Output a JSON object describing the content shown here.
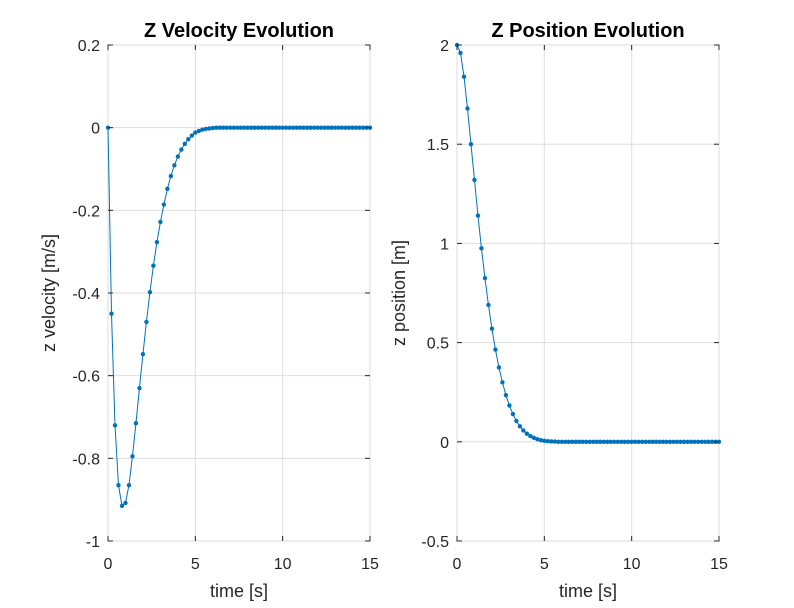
{
  "chart_data": [
    {
      "type": "line",
      "title": "Z Velocity Evolution",
      "xlabel": "time [s]",
      "ylabel": "z velocity [m/s]",
      "xlim": [
        0,
        15
      ],
      "ylim": [
        -1,
        0.2
      ],
      "xticks": [
        0,
        5,
        10,
        15
      ],
      "xtick_labels": [
        "0",
        "5",
        "10",
        "15"
      ],
      "yticks": [
        -1,
        -0.8,
        -0.6,
        -0.4,
        -0.2,
        0,
        0.2
      ],
      "ytick_labels": [
        "-1",
        "-0.8",
        "-0.6",
        "-0.4",
        "-0.2",
        "0",
        "0.2"
      ],
      "grid": true,
      "color": "#0072BD",
      "marker": "dot",
      "series": [
        {
          "x": [
            0,
            0.2,
            0.4,
            0.6,
            0.8,
            1.0,
            1.2,
            1.4,
            1.6,
            1.8,
            2.0,
            2.2,
            2.4,
            2.6,
            2.8,
            3.0,
            3.2,
            3.4,
            3.6,
            3.8,
            4.0,
            4.2,
            4.4,
            4.6,
            4.8,
            5.0,
            5.2,
            5.4,
            5.6,
            5.8,
            6.0,
            6.2,
            6.4,
            6.6,
            6.8,
            7.0,
            7.2,
            7.4,
            7.6,
            7.8,
            8.0,
            8.2,
            8.4,
            8.6,
            8.8,
            9.0,
            9.2,
            9.4,
            9.6,
            9.8,
            10.0,
            10.2,
            10.4,
            10.6,
            10.8,
            11.0,
            11.2,
            11.4,
            11.6,
            11.8,
            12.0,
            12.2,
            12.4,
            12.6,
            12.8,
            13.0,
            13.2,
            13.4,
            13.6,
            13.8,
            14.0,
            14.2,
            14.4,
            14.6,
            14.8,
            15.0
          ],
          "y": [
            0,
            -0.45,
            -0.72,
            -0.865,
            -0.915,
            -0.908,
            -0.865,
            -0.795,
            -0.715,
            -0.63,
            -0.548,
            -0.47,
            -0.398,
            -0.334,
            -0.277,
            -0.228,
            -0.186,
            -0.148,
            -0.117,
            -0.091,
            -0.07,
            -0.053,
            -0.039,
            -0.028,
            -0.019,
            -0.012,
            -0.008,
            -0.005,
            -0.003,
            -0.002,
            -0.001,
            0,
            0,
            0,
            0,
            0,
            0,
            0,
            0,
            0,
            0,
            0,
            0,
            0,
            0,
            0,
            0,
            0,
            0,
            0,
            0,
            0,
            0,
            0,
            0,
            0,
            0,
            0,
            0,
            0,
            0,
            0,
            0,
            0,
            0,
            0,
            0,
            0,
            0,
            0,
            0,
            0,
            0,
            0,
            0,
            0
          ]
        }
      ]
    },
    {
      "type": "line",
      "title": "Z Position Evolution",
      "xlabel": "time [s]",
      "ylabel": "z position [m]",
      "xlim": [
        0,
        15
      ],
      "ylim": [
        -0.5,
        2
      ],
      "xticks": [
        0,
        5,
        10,
        15
      ],
      "xtick_labels": [
        "0",
        "5",
        "10",
        "15"
      ],
      "yticks": [
        -0.5,
        0,
        0.5,
        1,
        1.5,
        2
      ],
      "ytick_labels": [
        "-0.5",
        "0",
        "0.5",
        "1",
        "1.5",
        "2"
      ],
      "grid": true,
      "color": "#0072BD",
      "marker": "dot",
      "series": [
        {
          "x": [
            0,
            0.2,
            0.4,
            0.6,
            0.8,
            1.0,
            1.2,
            1.4,
            1.6,
            1.8,
            2.0,
            2.2,
            2.4,
            2.6,
            2.8,
            3.0,
            3.2,
            3.4,
            3.6,
            3.8,
            4.0,
            4.2,
            4.4,
            4.6,
            4.8,
            5.0,
            5.2,
            5.4,
            5.6,
            5.8,
            6.0,
            6.2,
            6.4,
            6.6,
            6.8,
            7.0,
            7.2,
            7.4,
            7.6,
            7.8,
            8.0,
            8.2,
            8.4,
            8.6,
            8.8,
            9.0,
            9.2,
            9.4,
            9.6,
            9.8,
            10.0,
            10.2,
            10.4,
            10.6,
            10.8,
            11.0,
            11.2,
            11.4,
            11.6,
            11.8,
            12.0,
            12.2,
            12.4,
            12.6,
            12.8,
            13.0,
            13.2,
            13.4,
            13.6,
            13.8,
            14.0,
            14.2,
            14.4,
            14.6,
            14.8,
            15.0
          ],
          "y": [
            2,
            1.96,
            1.84,
            1.68,
            1.5,
            1.32,
            1.14,
            0.975,
            0.825,
            0.69,
            0.57,
            0.465,
            0.375,
            0.3,
            0.235,
            0.183,
            0.14,
            0.105,
            0.078,
            0.057,
            0.041,
            0.029,
            0.02,
            0.013,
            0.008,
            0.005,
            0.003,
            0.002,
            0.001,
            0,
            0,
            0,
            0,
            0,
            0,
            0,
            0,
            0,
            0,
            0,
            0,
            0,
            0,
            0,
            0,
            0,
            0,
            0,
            0,
            0,
            0,
            0,
            0,
            0,
            0,
            0,
            0,
            0,
            0,
            0,
            0,
            0,
            0,
            0,
            0,
            0,
            0,
            0,
            0,
            0,
            0,
            0,
            0,
            0,
            0,
            0
          ]
        }
      ]
    }
  ]
}
